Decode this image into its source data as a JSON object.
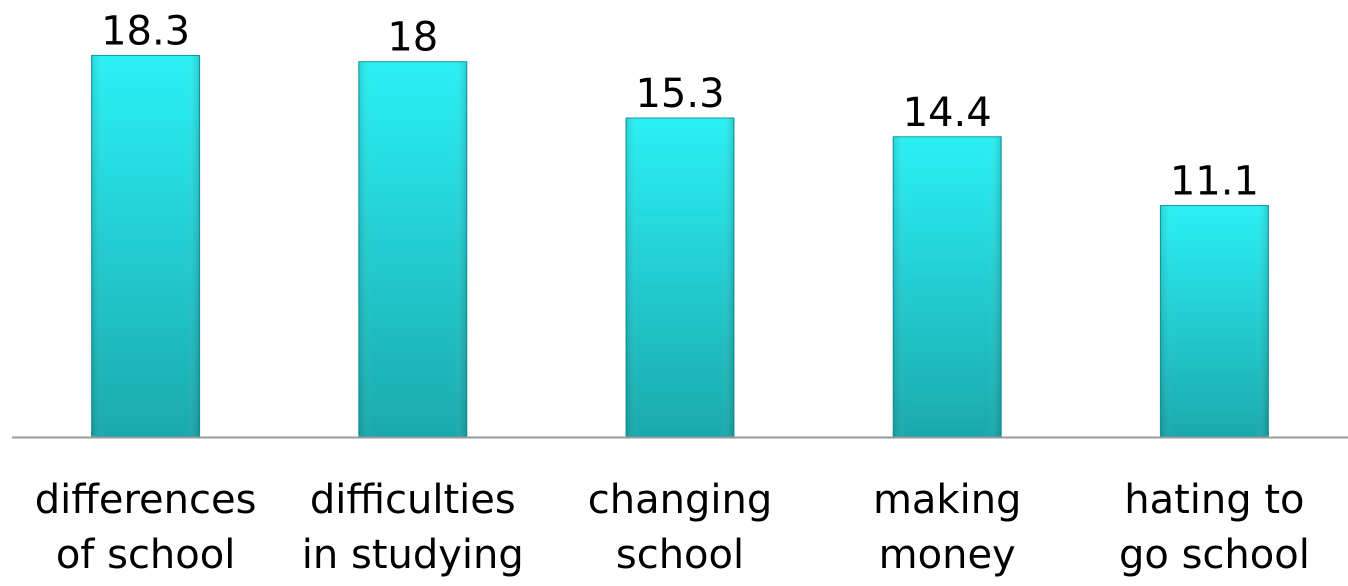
{
  "chart_data": {
    "type": "bar",
    "title": "",
    "xlabel": "",
    "ylabel": "",
    "categories": [
      [
        "differences",
        "of school"
      ],
      [
        "difficulties",
        "in studying"
      ],
      [
        "changing",
        "school"
      ],
      [
        "making",
        "money"
      ],
      [
        "hating to",
        "go school"
      ]
    ],
    "values": [
      18.3,
      18,
      15.3,
      14.4,
      11.1
    ],
    "value_labels": [
      "18.3",
      "18",
      "15.3",
      "14.4",
      "11.1"
    ],
    "ylim": [
      0,
      20
    ],
    "grid": false,
    "legend": "none",
    "colors": {
      "bar_top": "#2af0f4",
      "bar_bottom": "#1aa9ad",
      "bar_edge": "#17999c",
      "axis": "#9a9a9a"
    }
  }
}
